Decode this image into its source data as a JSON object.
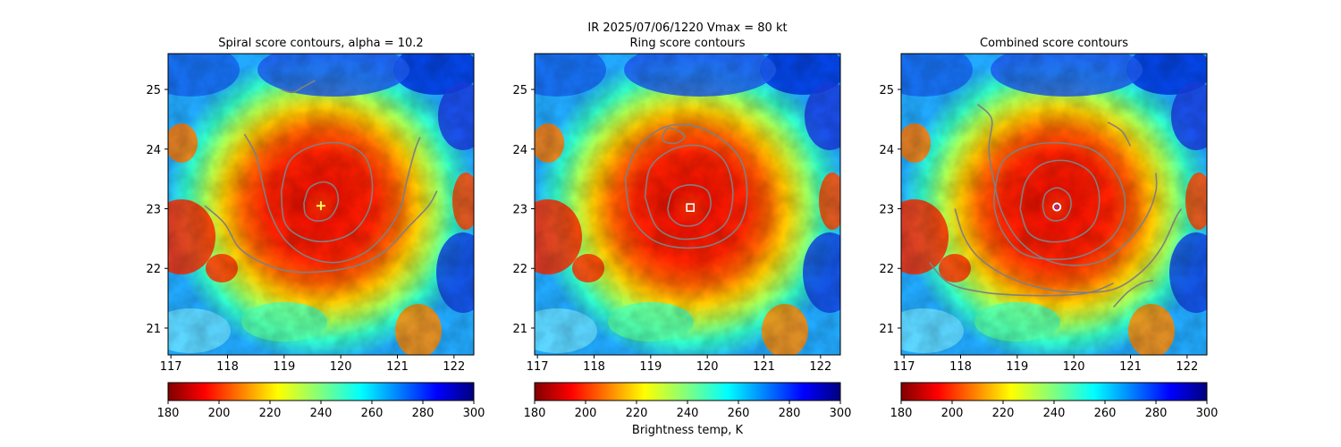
{
  "figure": {
    "suptitle": "IR  2025/07/06/1220    Vmax = 80 kt",
    "colorbar_label": "Brightness temp, K"
  },
  "colors": {
    "contour": "#808080",
    "marker_spiral": "#ffff66",
    "marker_ring": "#ffffff",
    "marker_combined_outer": "#ffffff",
    "marker_combined_inner": "#8e24aa"
  },
  "chart_data": [
    {
      "type": "heatmap",
      "title": "Spiral score contours, alpha = 10.2",
      "xlim": [
        116.95,
        122.35
      ],
      "ylim": [
        20.55,
        25.6
      ],
      "x_ticks": [
        117,
        118,
        119,
        120,
        121,
        122
      ],
      "y_ticks": [
        21,
        22,
        23,
        24,
        25
      ],
      "colorbar": {
        "label": "",
        "min": 180,
        "max": 300,
        "ticks": [
          180,
          200,
          220,
          240,
          260,
          280,
          300
        ],
        "colormap": "jet_r"
      },
      "center_estimate": {
        "lon": 119.65,
        "lat": 23.05,
        "marker": "plus"
      },
      "contours": [
        [
          [
            119.35,
            23.1
          ],
          [
            119.45,
            23.35
          ],
          [
            119.7,
            23.45
          ],
          [
            119.9,
            23.35
          ],
          [
            119.95,
            23.1
          ],
          [
            119.8,
            22.85
          ],
          [
            119.55,
            22.8
          ],
          [
            119.38,
            22.9
          ],
          [
            119.35,
            23.1
          ]
        ],
        [
          [
            118.95,
            23.3
          ],
          [
            119.1,
            23.8
          ],
          [
            119.5,
            24.05
          ],
          [
            120.0,
            24.1
          ],
          [
            120.4,
            23.9
          ],
          [
            120.55,
            23.5
          ],
          [
            120.5,
            23.0
          ],
          [
            120.2,
            22.6
          ],
          [
            119.7,
            22.45
          ],
          [
            119.25,
            22.55
          ],
          [
            119.0,
            22.8
          ],
          [
            118.95,
            23.3
          ]
        ],
        [
          [
            118.3,
            24.25
          ],
          [
            118.5,
            23.9
          ],
          [
            118.6,
            23.5
          ],
          [
            118.75,
            22.95
          ],
          [
            119.0,
            22.5
          ],
          [
            119.4,
            22.2
          ],
          [
            119.9,
            22.1
          ],
          [
            120.4,
            22.25
          ],
          [
            120.8,
            22.6
          ],
          [
            121.05,
            23.0
          ],
          [
            121.15,
            23.4
          ],
          [
            121.3,
            23.95
          ],
          [
            121.4,
            24.2
          ]
        ],
        [
          [
            117.6,
            23.05
          ],
          [
            117.95,
            22.75
          ],
          [
            118.2,
            22.35
          ],
          [
            118.6,
            22.1
          ],
          [
            119.1,
            21.95
          ],
          [
            119.7,
            21.95
          ],
          [
            120.3,
            22.05
          ],
          [
            120.8,
            22.3
          ],
          [
            121.2,
            22.7
          ],
          [
            121.55,
            23.05
          ],
          [
            121.7,
            23.3
          ]
        ],
        [
          [
            118.95,
            25.0
          ],
          [
            119.15,
            24.95
          ],
          [
            119.35,
            25.05
          ],
          [
            119.55,
            25.15
          ]
        ]
      ]
    },
    {
      "type": "heatmap",
      "title": "Ring score contours",
      "xlim": [
        116.95,
        122.35
      ],
      "ylim": [
        20.55,
        25.6
      ],
      "x_ticks": [
        117,
        118,
        119,
        120,
        121,
        122
      ],
      "y_ticks": [
        21,
        22,
        23,
        24,
        25
      ],
      "colorbar": {
        "label": "Brightness temp, K",
        "min": 180,
        "max": 300,
        "ticks": [
          180,
          200,
          220,
          240,
          260,
          280,
          300
        ],
        "colormap": "jet_r"
      },
      "center_estimate": {
        "lon": 119.7,
        "lat": 23.02,
        "marker": "square"
      },
      "contours": [
        [
          [
            119.3,
            23.0
          ],
          [
            119.4,
            23.3
          ],
          [
            119.7,
            23.4
          ],
          [
            120.0,
            23.3
          ],
          [
            120.05,
            23.0
          ],
          [
            119.85,
            22.75
          ],
          [
            119.55,
            22.72
          ],
          [
            119.35,
            22.85
          ],
          [
            119.3,
            23.0
          ]
        ],
        [
          [
            118.9,
            23.2
          ],
          [
            119.0,
            23.7
          ],
          [
            119.4,
            24.0
          ],
          [
            119.9,
            24.05
          ],
          [
            120.3,
            23.8
          ],
          [
            120.45,
            23.3
          ],
          [
            120.35,
            22.8
          ],
          [
            120.0,
            22.55
          ],
          [
            119.5,
            22.5
          ],
          [
            119.1,
            22.7
          ],
          [
            118.9,
            23.2
          ]
        ],
        [
          [
            118.55,
            23.5
          ],
          [
            118.75,
            24.0
          ],
          [
            119.2,
            24.35
          ],
          [
            119.7,
            24.4
          ],
          [
            120.2,
            24.2
          ],
          [
            120.6,
            23.8
          ],
          [
            120.7,
            23.2
          ],
          [
            120.55,
            22.7
          ],
          [
            120.1,
            22.4
          ],
          [
            119.5,
            22.35
          ],
          [
            119.0,
            22.5
          ],
          [
            118.65,
            22.9
          ],
          [
            118.55,
            23.5
          ]
        ],
        [
          [
            119.2,
            24.2
          ],
          [
            119.3,
            24.35
          ],
          [
            119.5,
            24.3
          ],
          [
            119.6,
            24.2
          ],
          [
            119.45,
            24.1
          ],
          [
            119.25,
            24.12
          ],
          [
            119.2,
            24.2
          ]
        ]
      ]
    },
    {
      "type": "heatmap",
      "title": "Combined score contours",
      "xlim": [
        116.95,
        122.35
      ],
      "ylim": [
        20.55,
        25.6
      ],
      "x_ticks": [
        117,
        118,
        119,
        120,
        121,
        122
      ],
      "y_ticks": [
        21,
        22,
        23,
        24,
        25
      ],
      "colorbar": {
        "label": "",
        "min": 180,
        "max": 300,
        "ticks": [
          180,
          200,
          220,
          240,
          260,
          280,
          300
        ],
        "colormap": "jet_r"
      },
      "center_estimate": {
        "lon": 119.7,
        "lat": 23.03,
        "marker": "circle"
      },
      "contours": [
        [
          [
            119.45,
            23.05
          ],
          [
            119.5,
            23.25
          ],
          [
            119.7,
            23.35
          ],
          [
            119.9,
            23.25
          ],
          [
            119.95,
            23.05
          ],
          [
            119.85,
            22.85
          ],
          [
            119.65,
            22.8
          ],
          [
            119.5,
            22.88
          ],
          [
            119.45,
            23.05
          ]
        ],
        [
          [
            119.05,
            23.0
          ],
          [
            119.15,
            23.45
          ],
          [
            119.45,
            23.75
          ],
          [
            119.9,
            23.8
          ],
          [
            120.3,
            23.6
          ],
          [
            120.45,
            23.2
          ],
          [
            120.35,
            22.75
          ],
          [
            120.0,
            22.5
          ],
          [
            119.55,
            22.45
          ],
          [
            119.2,
            22.6
          ],
          [
            119.05,
            23.0
          ]
        ],
        [
          [
            118.6,
            23.3
          ],
          [
            118.75,
            23.8
          ],
          [
            119.2,
            24.05
          ],
          [
            119.8,
            24.1
          ],
          [
            120.4,
            23.95
          ],
          [
            120.8,
            23.5
          ],
          [
            120.9,
            23.0
          ],
          [
            120.7,
            22.55
          ],
          [
            120.25,
            22.25
          ],
          [
            119.7,
            22.15
          ],
          [
            119.1,
            22.25
          ],
          [
            118.75,
            22.6
          ],
          [
            118.6,
            23.0
          ],
          [
            118.6,
            23.3
          ]
        ],
        [
          [
            118.3,
            24.75
          ],
          [
            118.55,
            24.5
          ],
          [
            118.5,
            24.0
          ],
          [
            118.6,
            23.4
          ],
          [
            118.75,
            22.9
          ],
          [
            119.05,
            22.45
          ],
          [
            119.5,
            22.15
          ],
          [
            120.0,
            22.05
          ],
          [
            120.55,
            22.15
          ],
          [
            121.0,
            22.5
          ],
          [
            121.3,
            22.9
          ],
          [
            121.45,
            23.3
          ],
          [
            121.45,
            23.6
          ]
        ],
        [
          [
            117.9,
            23.0
          ],
          [
            118.05,
            22.55
          ],
          [
            118.3,
            22.2
          ],
          [
            118.75,
            21.9
          ],
          [
            119.3,
            21.7
          ],
          [
            120.0,
            21.6
          ],
          [
            120.7,
            21.65
          ],
          [
            121.2,
            21.95
          ],
          [
            121.55,
            22.35
          ],
          [
            121.8,
            22.85
          ],
          [
            121.9,
            23.0
          ]
        ],
        [
          [
            117.45,
            22.1
          ],
          [
            117.8,
            21.75
          ],
          [
            118.4,
            21.6
          ],
          [
            119.1,
            21.55
          ],
          [
            119.8,
            21.55
          ],
          [
            120.3,
            21.6
          ],
          [
            120.7,
            21.75
          ]
        ],
        [
          [
            120.7,
            21.35
          ],
          [
            120.95,
            21.6
          ],
          [
            121.2,
            21.75
          ],
          [
            121.4,
            21.8
          ]
        ],
        [
          [
            120.6,
            24.45
          ],
          [
            120.85,
            24.3
          ],
          [
            121.0,
            24.05
          ]
        ]
      ]
    }
  ]
}
